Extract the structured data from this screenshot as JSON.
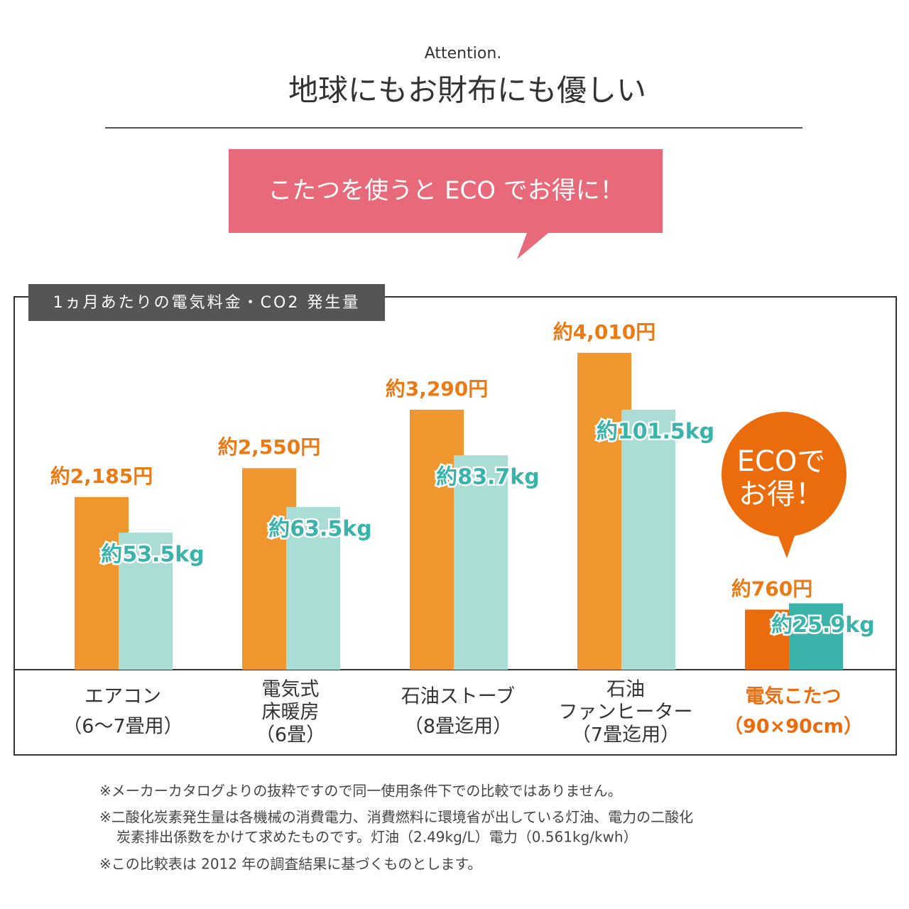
{
  "header": {
    "kicker": "Attention.",
    "title": "地球にもお財布にも優しい"
  },
  "banner": "こたつを使うと ECO でお得に！",
  "panel_label": "1ヵ月あたりの電気料金・CO2 発生量",
  "annotation": [
    "ECOで",
    "お得！"
  ],
  "notes": [
    "※メーカーカタログよりの抜粋ですので同一使用条件下での比較ではありません。",
    "※二酸化炭素発生量は各機械の消費電力、消費燃料に環境省が出している灯油、電力の二酸化",
    "炭素排出係数をかけて求めたものです。灯油（2.49kg/L）電力（0.561kg/kwh）",
    "※この比較表は 2012 年の調査結果に基づくものとします。"
  ],
  "chart_data": {
    "type": "bar",
    "categories": [
      [
        "エアコン",
        "（6〜7畳用）"
      ],
      [
        "電気式",
        "床暖房",
        "（6畳）"
      ],
      [
        "石油ストーブ",
        "（8畳迄用）"
      ],
      [
        "石油",
        "ファンヒーター",
        "（7畳迄用）"
      ],
      [
        "電気こたつ",
        "（90×90cm）"
      ]
    ],
    "ylim": [
      0,
      4700
    ],
    "y2lim": [
      0,
      145
    ],
    "series": [
      {
        "name": "電気料金",
        "color": "#f0962e",
        "colors": [
          "#f0962e",
          "#f0962e",
          "#f0962e",
          "#f0962e",
          "#ea6c0c"
        ],
        "values": [
          2185,
          2550,
          3290,
          4010,
          760
        ],
        "value_labels": [
          "約2,185円",
          "約2,550円",
          "約3,290円",
          "約4,010円",
          "約760円"
        ]
      },
      {
        "name": "CO2 発生量",
        "axis": "y2",
        "color": "#a9ddd5",
        "colors": [
          "#a9ddd5",
          "#a9ddd5",
          "#a9ddd5",
          "#a9ddd5",
          "#3ab4ab"
        ],
        "values": [
          53.5,
          63.5,
          83.7,
          101.5,
          25.9
        ],
        "value_labels": [
          "約53.5kg",
          "約63.5kg",
          "約83.7kg",
          "約101.5kg",
          "約25.9kg"
        ]
      }
    ]
  }
}
